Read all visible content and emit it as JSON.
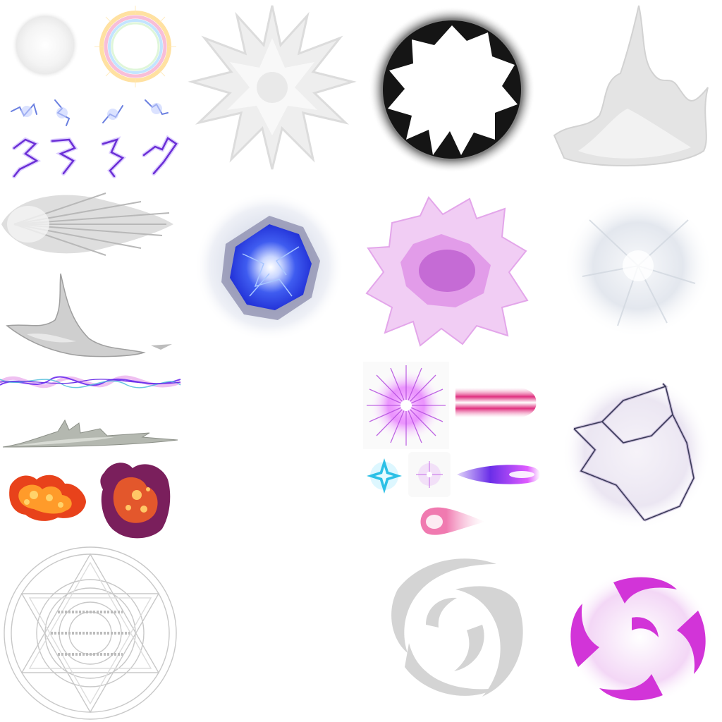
{
  "atlas": {
    "background": "#ffffff",
    "sprites": [
      {
        "name": "soft-glow-orb-icon",
        "colors": [
          "#f0f0f0",
          "#ffffff"
        ]
      },
      {
        "name": "rainbow-halo-ring-icon",
        "colors": [
          "#ffd98a",
          "#f5a3c7",
          "#a9d8ff",
          "#c9f0c0"
        ]
      },
      {
        "name": "white-starburst-icon",
        "colors": [
          "#e6e6e6",
          "#d0d0d0",
          "#f7f7f7"
        ]
      },
      {
        "name": "black-ring-shockwave-icon",
        "colors": [
          "#151515",
          "#5a5a5a",
          "#d8d8d8",
          "#ffffff"
        ]
      },
      {
        "name": "upward-smoke-plume-icon",
        "colors": [
          "#cfcfcf",
          "#e9e9e9"
        ]
      },
      {
        "name": "small-blue-sparks-icon",
        "colors": [
          "#6a7fe0",
          "#c4d0ff"
        ]
      },
      {
        "name": "purple-lightning-bolts-icon",
        "colors": [
          "#6b2fd6",
          "#b596ff"
        ]
      },
      {
        "name": "gray-speed-burst-icon",
        "colors": [
          "#b8b8b8",
          "#e5e5e5"
        ]
      },
      {
        "name": "blue-energy-core-icon",
        "colors": [
          "#2333d8",
          "#5a8cff",
          "#e9eef8",
          "#ffffff"
        ]
      },
      {
        "name": "magenta-crystal-burst-icon",
        "colors": [
          "#b24bc8",
          "#e3a6ea",
          "#f7dff9"
        ]
      },
      {
        "name": "pale-frost-nova-icon",
        "colors": [
          "#dfe4ea",
          "#f3f5f8"
        ]
      },
      {
        "name": "gray-wave-slash-icon",
        "colors": [
          "#8f8f8f",
          "#c9c9c9"
        ]
      },
      {
        "name": "violet-lightning-stream-icon",
        "colors": [
          "#7a3cf0",
          "#d04ad8",
          "#46b9d8"
        ]
      },
      {
        "name": "gray-ground-slash-icon",
        "colors": [
          "#8c9088",
          "#c6cac2"
        ]
      },
      {
        "name": "orange-fire-cloud-icon",
        "colors": [
          "#ff9b2a",
          "#e8421b",
          "#ffd36b"
        ]
      },
      {
        "name": "purple-fire-cloud-icon",
        "colors": [
          "#7a1f5c",
          "#e3572c",
          "#ffc766"
        ]
      },
      {
        "name": "hexagram-magic-circle-icon",
        "colors": [
          "#d2d2d2",
          "#bcbcbc"
        ]
      },
      {
        "name": "magenta-star-flare-icon",
        "colors": [
          "#e052ff",
          "#b54ee0",
          "#ffffff"
        ]
      },
      {
        "name": "pink-laser-beam-icon",
        "colors": [
          "#e0307f",
          "#f5a6c9",
          "#ffffff"
        ]
      },
      {
        "name": "cyan-diamond-spark-icon",
        "colors": [
          "#2cc0e6",
          "#9fe9ff"
        ]
      },
      {
        "name": "tiny-violet-flare-icon",
        "colors": [
          "#c66ce8",
          "#f0d9f7"
        ]
      },
      {
        "name": "violet-plasma-bolt-icon",
        "colors": [
          "#6a2ee8",
          "#e05cff",
          "#ffffff"
        ]
      },
      {
        "name": "pink-comet-blob-icon",
        "colors": [
          "#f07ab0",
          "#f9c9df",
          "#ffffff"
        ]
      },
      {
        "name": "dark-lightning-web-icon",
        "colors": [
          "#3a3a58",
          "#8a6fb0",
          "#ebe6f2"
        ]
      },
      {
        "name": "gray-swirl-vortex-icon",
        "colors": [
          "#bdbdbd",
          "#e2e2e2"
        ]
      },
      {
        "name": "magenta-spiral-vortex-icon",
        "colors": [
          "#d234d8",
          "#f3d7f6"
        ]
      }
    ]
  }
}
